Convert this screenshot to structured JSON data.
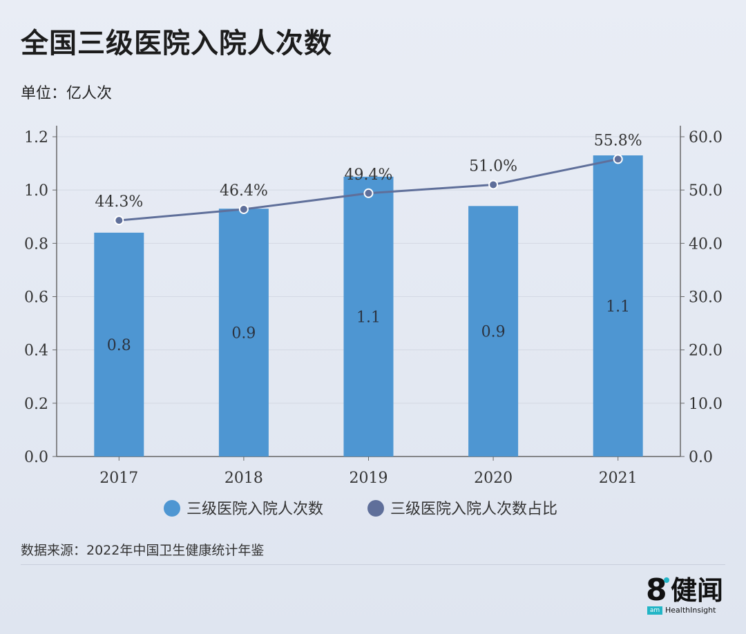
{
  "header": {
    "title": "全国三级医院入院人次数",
    "unit": "单位：亿人次"
  },
  "footer": {
    "source": "数据来源：2022年中国卫生健康统计年鉴"
  },
  "logo": {
    "eight": "8",
    "name": "健闻",
    "am": "am",
    "sub": "HealthInsight"
  },
  "colors": {
    "bar": "#4e96d2",
    "line": "#5f6f9a",
    "grid": "#d3d8e3",
    "axis": "#666666"
  },
  "chart_data": {
    "type": "bar",
    "categories": [
      "2017",
      "2018",
      "2019",
      "2020",
      "2021"
    ],
    "series": [
      {
        "name": "三级医院入院人次数",
        "type": "bar",
        "axis": "left",
        "values": [
          0.84,
          0.93,
          1.05,
          0.94,
          1.13
        ],
        "labels": [
          "0.8",
          "0.9",
          "1.1",
          "0.9",
          "1.1"
        ]
      },
      {
        "name": "三级医院入院人次数占比",
        "type": "line",
        "axis": "right",
        "values": [
          44.3,
          46.4,
          49.4,
          51.0,
          55.8
        ],
        "labels": [
          "44.3%",
          "46.4%",
          "49.4%",
          "51.0%",
          "55.8%"
        ]
      }
    ],
    "y_left": {
      "min": 0,
      "max": 1.2,
      "ticks": [
        "0.0",
        "0.2",
        "0.4",
        "0.6",
        "0.8",
        "1.0",
        "1.2"
      ]
    },
    "y_right": {
      "min": 0,
      "max": 60,
      "ticks": [
        "0.0",
        "10.0",
        "20.0",
        "30.0",
        "40.0",
        "50.0",
        "60.0"
      ]
    },
    "grid": true,
    "legend": "bottom"
  }
}
